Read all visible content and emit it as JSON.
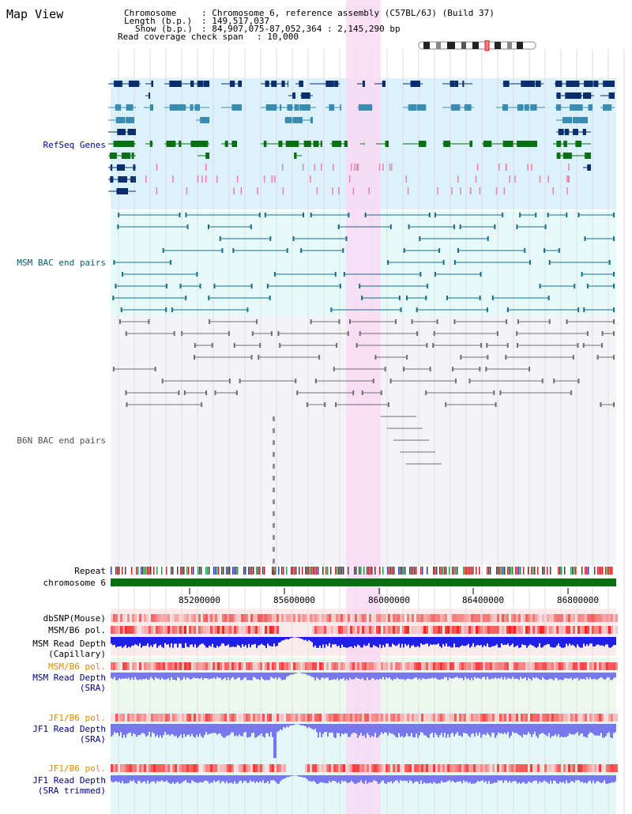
{
  "title": "Map View",
  "info": {
    "chromosome_label": "Chromosome",
    "chromosome_value": ": Chromosome 6, reference assembly (C57BL/6J) (Build 37)",
    "length_label": "Length (b.p.)",
    "length_value": ": 149,517,037",
    "show_label": "Show (b.p.)",
    "show_value": ": 84,907,075-87,052,364 : 2,145,290 bp",
    "coverage_label": "Read coverage check span",
    "coverage_value": ": 10,000"
  },
  "tracks": {
    "refseq": "RefSeq Genes",
    "msm_bac": "MSM BAC end pairs",
    "b6n_bac": "B6N BAC end pairs",
    "repeat": "Repeat",
    "chromosome": "chromosome 6",
    "dbsnp": "dbSNP(Mouse)",
    "msm_b6_pol_cap": "MSM/B6 pol.",
    "msm_depth_cap_1": "MSM Read Depth",
    "msm_depth_cap_2": "(Capillary)",
    "msm_b6_pol_sra": "MSM/B6 pol.",
    "msm_depth_sra_1": "MSM Read Depth",
    "msm_depth_sra_2": "(SRA)",
    "jf1_b6_pol_sra": "JF1/B6 pol.",
    "jf1_depth_sra_1": "JF1 Read Depth",
    "jf1_depth_sra_2": "(SRA)",
    "jf1_b6_pol_trim": "JF1/B6 pol.",
    "jf1_depth_trim_1": "JF1 Read Depth",
    "jf1_depth_trim_2": "(SRA trimmed)"
  },
  "axis_ticks": [
    "85200000",
    "85600000",
    "86000000",
    "86400000",
    "86800000"
  ],
  "colors": {
    "refseq_bg": "#dbf1fb",
    "msm_bg": "#e6fafa",
    "b6n_bg": "#f4f4f8",
    "highlight": "#f9d9f3",
    "gene_dark": "#0a2d6e",
    "gene_mid": "#3a8bb0",
    "gene_green": "#0a6e12",
    "bac_msm": "#1b6e8a",
    "bac_b6n": "#707070",
    "chromosome": "#0a6e12",
    "depth_dark": "#1f1fe8",
    "depth_light": "#7878ee",
    "pol_red": "#ee3030"
  }
}
